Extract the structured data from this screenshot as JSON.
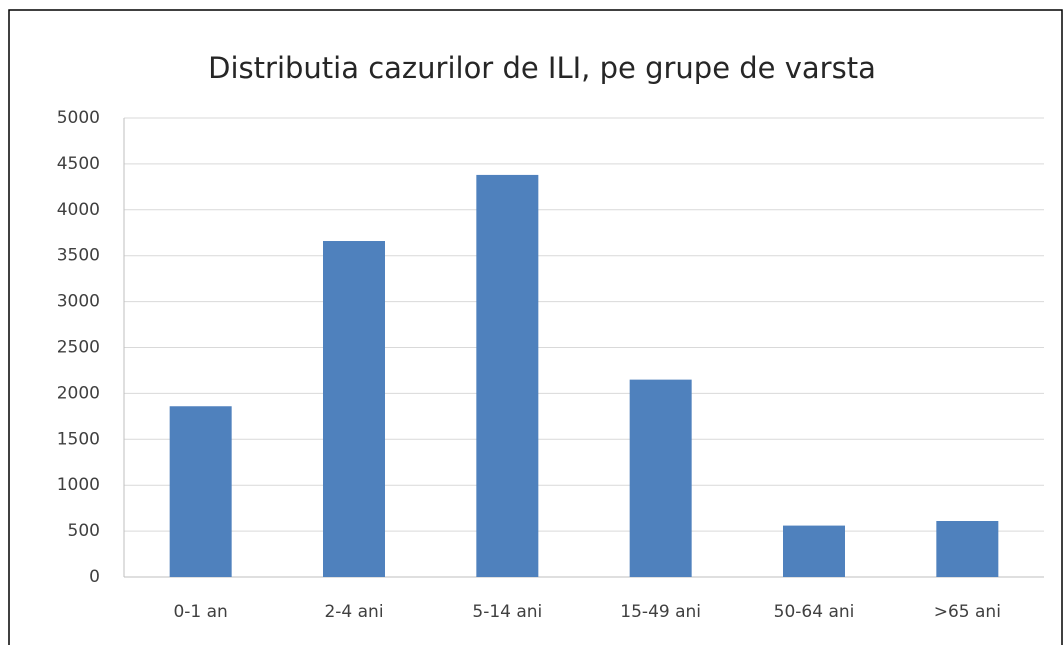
{
  "chart_data": {
    "type": "bar",
    "title": "Distributia cazurilor de ILI, pe grupe de varsta",
    "categories": [
      "0-1 an",
      "2-4 ani",
      "5-14 ani",
      "15-49 ani",
      "50-64 ani",
      ">65 ani"
    ],
    "values": [
      1860,
      3660,
      4380,
      2150,
      560,
      610
    ],
    "color": "#4f81bd",
    "ylim": [
      0,
      5000
    ],
    "yticks": [
      0,
      500,
      1000,
      1500,
      2000,
      2500,
      3000,
      3500,
      4000,
      4500,
      5000
    ],
    "grid": true
  }
}
